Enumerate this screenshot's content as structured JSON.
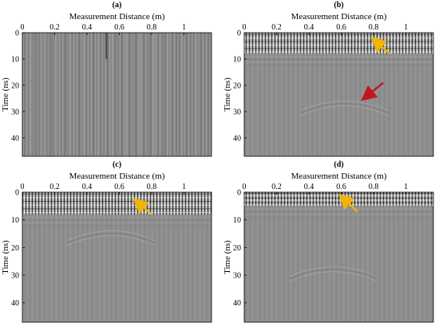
{
  "colors": {
    "background_gray": "#8c8c8c",
    "yellow_arrow": "#f2b400",
    "red_arrow": "#c4161c",
    "axis": "#000000"
  },
  "chart_data": [
    {
      "type": "heatmap",
      "title": "(a)",
      "xlabel": "Measurement Distance (m)",
      "ylabel": "Time (ns)",
      "xlim": [
        0,
        1.17
      ],
      "ylim": [
        47,
        0
      ],
      "xticks": [
        0,
        0.2,
        0.4,
        0.6,
        0.8,
        1
      ],
      "xtick_labels": [
        "0",
        "0.2",
        "0.4",
        "0.6",
        "0.8",
        "1"
      ],
      "yticks": [
        0,
        10,
        20,
        30,
        40
      ],
      "ytick_labels": [
        "0",
        "10",
        "20",
        "30",
        "40"
      ],
      "bright_band_ns": null,
      "hyperbola": null,
      "arrows": []
    },
    {
      "type": "heatmap",
      "title": "(b)",
      "xlabel": "Measurement Distance (m)",
      "ylabel": "Time (ns)",
      "xlim": [
        0,
        1.17
      ],
      "ylim": [
        47,
        0
      ],
      "xticks": [
        0,
        0.2,
        0.4,
        0.6,
        0.8,
        1
      ],
      "xtick_labels": [
        "0",
        "0.2",
        "0.4",
        "0.6",
        "0.8",
        "1"
      ],
      "yticks": [
        0,
        10,
        20,
        30,
        40
      ],
      "ytick_labels": [
        "0",
        "10",
        "20",
        "30",
        "40"
      ],
      "bright_band_ns": [
        0,
        8
      ],
      "hyperbola": {
        "apex_m": 0.62,
        "apex_ns": 26
      },
      "arrows": [
        {
          "color": "yellow",
          "tip_m": 0.8,
          "tip_ns": 2.5,
          "tail_m": 0.9,
          "tail_ns": 8
        },
        {
          "color": "red",
          "tip_m": 0.74,
          "tip_ns": 25,
          "tail_m": 0.86,
          "tail_ns": 19
        }
      ]
    },
    {
      "type": "heatmap",
      "title": "(c)",
      "xlabel": "Measurement Distance (m)",
      "ylabel": "Time (ns)",
      "xlim": [
        0,
        1.17
      ],
      "ylim": [
        47,
        0
      ],
      "xticks": [
        0,
        0.2,
        0.4,
        0.6,
        0.8,
        1
      ],
      "xtick_labels": [
        "0",
        "0.2",
        "0.4",
        "0.6",
        "0.8",
        "1"
      ],
      "yticks": [
        0,
        10,
        20,
        30,
        40
      ],
      "ytick_labels": [
        "0",
        "10",
        "20",
        "30",
        "40"
      ],
      "bright_band_ns": [
        0,
        8
      ],
      "hyperbola": {
        "apex_m": 0.55,
        "apex_ns": 14
      },
      "arrows": [
        {
          "color": "yellow",
          "tip_m": 0.7,
          "tip_ns": 3,
          "tail_m": 0.8,
          "tail_ns": 8
        }
      ]
    },
    {
      "type": "heatmap",
      "title": "(d)",
      "xlabel": "Measurement Distance (m)",
      "ylabel": "Time (ns)",
      "xlim": [
        0,
        1.17
      ],
      "ylim": [
        47,
        0
      ],
      "xticks": [
        0,
        0.2,
        0.4,
        0.6,
        0.8,
        1
      ],
      "xtick_labels": [
        "0",
        "0.2",
        "0.4",
        "0.6",
        "0.8",
        "1"
      ],
      "yticks": [
        0,
        10,
        20,
        30,
        40
      ],
      "ytick_labels": [
        "0",
        "10",
        "20",
        "30",
        "40"
      ],
      "bright_band_ns": [
        0,
        5
      ],
      "hyperbola": {
        "apex_m": 0.55,
        "apex_ns": 27
      },
      "arrows": [
        {
          "color": "yellow",
          "tip_m": 0.6,
          "tip_ns": 1.5,
          "tail_m": 0.7,
          "tail_ns": 7
        }
      ]
    }
  ]
}
